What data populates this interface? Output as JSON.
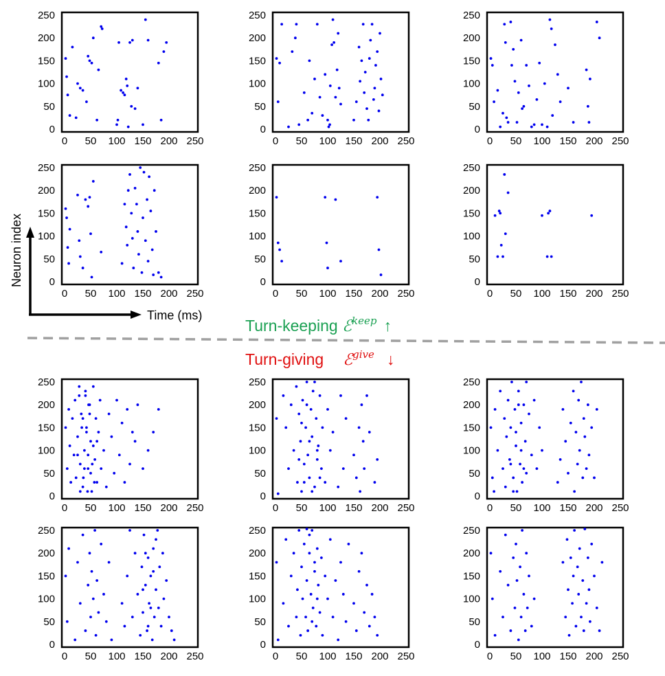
{
  "figure": {
    "colors": {
      "spike": "#0000ee",
      "keep": "#1aa052",
      "give": "#e01010",
      "divider": "#a0a0a0",
      "frame": "#000000"
    },
    "axis_labels": {
      "y": "Neuron index",
      "x": "Time (ms)"
    },
    "banner_keep": {
      "text": "Turn-keeping ",
      "symbol": "ℰ",
      "superscript": "keep",
      "arrow": "↑"
    },
    "banner_give": {
      "text": "Turn-giving",
      "symbol": "ℰ",
      "superscript": "give",
      "arrow": "↓"
    }
  },
  "chart_data": [
    {
      "type": "scatter",
      "group": "turn-keeping",
      "row": 1,
      "col": 1,
      "xlim": [
        0,
        250
      ],
      "ylim": [
        0,
        250
      ],
      "xticks": [
        "0",
        "50",
        "100",
        "150",
        "200",
        "250"
      ],
      "yticks": [
        "0",
        "50",
        "100",
        "150",
        "200",
        "250"
      ],
      "x": [
        2,
        4,
        6,
        10,
        15,
        22,
        25,
        30,
        35,
        42,
        45,
        48,
        52,
        55,
        62,
        65,
        70,
        72,
        100,
        102,
        104,
        108,
        112,
        115,
        118,
        120,
        122,
        125,
        128,
        130,
        135,
        140,
        150,
        155,
        160,
        180,
        185,
        190,
        195
      ],
      "y": [
        155,
        115,
        75,
        30,
        180,
        25,
        100,
        90,
        85,
        60,
        160,
        150,
        145,
        200,
        20,
        130,
        225,
        220,
        10,
        20,
        190,
        85,
        80,
        75,
        110,
        95,
        5,
        190,
        50,
        195,
        45,
        90,
        10,
        240,
        195,
        145,
        20,
        170,
        190
      ]
    },
    {
      "type": "scatter",
      "group": "turn-keeping",
      "row": 1,
      "col": 2,
      "xlim": [
        0,
        250
      ],
      "ylim": [
        0,
        250
      ],
      "xticks": [
        "0",
        "50",
        "100",
        "150",
        "200",
        "250"
      ],
      "yticks": [
        "0",
        "50",
        "100",
        "150",
        "200",
        "250"
      ],
      "x": [
        2,
        5,
        8,
        12,
        25,
        32,
        38,
        40,
        45,
        55,
        62,
        65,
        70,
        75,
        80,
        85,
        90,
        95,
        100,
        102,
        104,
        105,
        108,
        110,
        112,
        115,
        118,
        120,
        122,
        125,
        150,
        155,
        160,
        162,
        165,
        168,
        170,
        172,
        175,
        178,
        180,
        182,
        185,
        188,
        190,
        192,
        195,
        198,
        200,
        202,
        205
      ],
      "y": [
        155,
        60,
        145,
        230,
        5,
        170,
        200,
        230,
        10,
        80,
        20,
        150,
        35,
        110,
        230,
        70,
        30,
        120,
        20,
        5,
        10,
        95,
        185,
        240,
        190,
        70,
        130,
        210,
        90,
        55,
        20,
        60,
        180,
        105,
        150,
        230,
        80,
        125,
        45,
        20,
        155,
        195,
        230,
        65,
        90,
        140,
        170,
        40,
        210,
        110,
        75
      ]
    },
    {
      "type": "scatter",
      "group": "turn-keeping",
      "row": 1,
      "col": 3,
      "xlim": [
        0,
        250
      ],
      "ylim": [
        0,
        250
      ],
      "xticks": [
        "0",
        "50",
        "100",
        "150",
        "200",
        "250"
      ],
      "yticks": [
        "0",
        "50",
        "100",
        "150",
        "200",
        "250"
      ],
      "x": [
        2,
        5,
        8,
        15,
        20,
        25,
        28,
        30,
        32,
        35,
        40,
        42,
        45,
        48,
        52,
        55,
        60,
        62,
        65,
        70,
        75,
        80,
        85,
        90,
        95,
        100,
        105,
        110,
        115,
        118,
        120,
        125,
        130,
        135,
        150,
        160,
        185,
        188,
        190,
        192,
        205,
        210
      ],
      "y": [
        155,
        140,
        60,
        85,
        5,
        35,
        230,
        190,
        25,
        15,
        235,
        140,
        175,
        105,
        15,
        80,
        195,
        45,
        50,
        140,
        95,
        5,
        10,
        65,
        145,
        10,
        100,
        5,
        240,
        220,
        30,
        185,
        120,
        60,
        90,
        15,
        130,
        50,
        15,
        110,
        235,
        200
      ]
    },
    {
      "type": "scatter",
      "group": "turn-keeping",
      "row": 2,
      "col": 1,
      "xlim": [
        0,
        250
      ],
      "ylim": [
        0,
        250
      ],
      "xticks": [
        "0",
        "50",
        "100",
        "150",
        "200",
        "250"
      ],
      "yticks": [
        "0",
        "50",
        "100",
        "150",
        "200",
        "250"
      ],
      "x": [
        2,
        4,
        6,
        8,
        10,
        25,
        28,
        30,
        35,
        40,
        45,
        48,
        50,
        52,
        55,
        70,
        110,
        115,
        118,
        120,
        122,
        125,
        128,
        130,
        132,
        135,
        138,
        140,
        142,
        145,
        148,
        150,
        152,
        155,
        158,
        160,
        162,
        165,
        168,
        170,
        172,
        175,
        180,
        185
      ],
      "y": [
        160,
        140,
        75,
        40,
        115,
        190,
        90,
        55,
        30,
        180,
        165,
        185,
        105,
        10,
        220,
        65,
        40,
        170,
        120,
        80,
        200,
        235,
        150,
        95,
        30,
        205,
        170,
        110,
        60,
        250,
        20,
        140,
        240,
        90,
        180,
        45,
        230,
        155,
        70,
        15,
        200,
        110,
        20,
        10
      ]
    },
    {
      "type": "scatter",
      "group": "turn-keeping",
      "row": 2,
      "col": 2,
      "xlim": [
        0,
        250
      ],
      "ylim": [
        0,
        250
      ],
      "xticks": [
        "0",
        "50",
        "100",
        "150",
        "200",
        "250"
      ],
      "yticks": [
        "0",
        "50",
        "100",
        "150",
        "200",
        "250"
      ],
      "x": [
        2,
        5,
        8,
        12,
        95,
        98,
        100,
        115,
        125,
        195,
        198,
        202
      ],
      "y": [
        185,
        85,
        70,
        45,
        185,
        85,
        30,
        180,
        45,
        185,
        70,
        15
      ]
    },
    {
      "type": "scatter",
      "group": "turn-keeping",
      "row": 2,
      "col": 3,
      "xlim": [
        0,
        250
      ],
      "ylim": [
        0,
        250
      ],
      "xticks": [
        "0",
        "50",
        "100",
        "150",
        "200",
        "250"
      ],
      "yticks": [
        "0",
        "50",
        "100",
        "150",
        "200",
        "250"
      ],
      "x": [
        10,
        15,
        18,
        20,
        22,
        25,
        28,
        30,
        35,
        100,
        110,
        112,
        115,
        118,
        195
      ],
      "y": [
        145,
        55,
        155,
        150,
        80,
        55,
        235,
        105,
        195,
        145,
        55,
        150,
        155,
        55,
        145
      ]
    },
    {
      "type": "scatter",
      "group": "turn-giving",
      "row": 3,
      "col": 1,
      "xlim": [
        0,
        250
      ],
      "ylim": [
        0,
        250
      ],
      "xticks": [
        "0",
        "50",
        "100",
        "150",
        "200",
        "250"
      ],
      "yticks": [
        "0",
        "50",
        "100",
        "150",
        "200",
        "250"
      ],
      "x": [
        2,
        5,
        8,
        10,
        12,
        15,
        18,
        20,
        22,
        25,
        28,
        30,
        32,
        35,
        38,
        40,
        42,
        45,
        48,
        50,
        52,
        55,
        58,
        60,
        62,
        65,
        68,
        70,
        75,
        80,
        85,
        90,
        95,
        100,
        105,
        110,
        115,
        120,
        125,
        130,
        135,
        140,
        150,
        160,
        170,
        180,
        30,
        35,
        40,
        45,
        50,
        55,
        38,
        42,
        46,
        25,
        28,
        33,
        36,
        44,
        48,
        53,
        57,
        62
      ],
      "y": [
        150,
        60,
        190,
        110,
        30,
        170,
        90,
        210,
        40,
        130,
        240,
        70,
        180,
        20,
        100,
        220,
        150,
        60,
        200,
        120,
        10,
        240,
        80,
        170,
        30,
        140,
        210,
        60,
        100,
        20,
        180,
        130,
        50,
        210,
        90,
        160,
        30,
        190,
        70,
        140,
        120,
        200,
        60,
        100,
        140,
        190,
        10,
        170,
        230,
        90,
        50,
        110,
        60,
        140,
        200,
        90,
        220,
        150,
        40,
        10,
        180,
        70,
        30,
        120
      ]
    },
    {
      "type": "scatter",
      "group": "turn-giving",
      "row": 3,
      "col": 2,
      "xlim": [
        0,
        250
      ],
      "ylim": [
        0,
        250
      ],
      "xticks": [
        "0",
        "50",
        "100",
        "150",
        "200",
        "250"
      ],
      "yticks": [
        "0",
        "50",
        "100",
        "150",
        "200",
        "250"
      ],
      "x": [
        2,
        5,
        15,
        20,
        25,
        30,
        35,
        40,
        42,
        45,
        48,
        50,
        52,
        55,
        58,
        60,
        62,
        65,
        68,
        70,
        72,
        75,
        78,
        80,
        82,
        85,
        88,
        90,
        95,
        100,
        105,
        110,
        120,
        125,
        130,
        135,
        150,
        155,
        160,
        162,
        165,
        168,
        170,
        175,
        180,
        190,
        195,
        45,
        50,
        55,
        60,
        65,
        70,
        75,
        80,
        85
      ],
      "y": [
        170,
        5,
        220,
        150,
        60,
        200,
        100,
        240,
        30,
        180,
        120,
        10,
        210,
        70,
        150,
        250,
        90,
        40,
        190,
        130,
        230,
        20,
        170,
        80,
        110,
        220,
        60,
        150,
        30,
        190,
        100,
        140,
        20,
        220,
        60,
        170,
        90,
        40,
        150,
        10,
        200,
        120,
        60,
        220,
        140,
        30,
        80,
        80,
        160,
        30,
        200,
        120,
        10,
        250,
        100,
        40
      ]
    },
    {
      "type": "scatter",
      "group": "turn-giving",
      "row": 3,
      "col": 3,
      "xlim": [
        0,
        250
      ],
      "ylim": [
        0,
        250
      ],
      "xticks": [
        "0",
        "50",
        "100",
        "150",
        "200",
        "250"
      ],
      "yticks": [
        "0",
        "50",
        "100",
        "150",
        "200",
        "250"
      ],
      "x": [
        2,
        5,
        8,
        10,
        15,
        20,
        25,
        28,
        30,
        32,
        35,
        38,
        40,
        42,
        45,
        48,
        50,
        52,
        55,
        58,
        60,
        62,
        65,
        68,
        70,
        75,
        80,
        85,
        90,
        95,
        100,
        130,
        135,
        140,
        145,
        150,
        155,
        160,
        162,
        165,
        168,
        170,
        172,
        175,
        178,
        180,
        182,
        185,
        188,
        190,
        195,
        200,
        205,
        40,
        45,
        50,
        55,
        60,
        65,
        70
      ],
      "y": [
        150,
        40,
        10,
        190,
        100,
        230,
        60,
        170,
        20,
        130,
        210,
        80,
        150,
        250,
        40,
        190,
        110,
        10,
        230,
        70,
        160,
        30,
        200,
        120,
        50,
        180,
        90,
        210,
        60,
        150,
        100,
        30,
        80,
        190,
        120,
        50,
        160,
        230,
        10,
        140,
        70,
        210,
        100,
        250,
        40,
        170,
        130,
        60,
        200,
        90,
        150,
        40,
        190,
        70,
        10,
        140,
        200,
        100,
        60,
        250
      ]
    },
    {
      "type": "scatter",
      "group": "turn-giving",
      "row": 4,
      "col": 1,
      "xlim": [
        0,
        250
      ],
      "ylim": [
        0,
        250
      ],
      "xticks": [
        "0",
        "50",
        "100",
        "150",
        "200",
        "250"
      ],
      "yticks": [
        "0",
        "50",
        "100",
        "150",
        "200",
        "250"
      ],
      "x": [
        2,
        5,
        8,
        20,
        25,
        30,
        35,
        40,
        45,
        48,
        50,
        52,
        55,
        58,
        60,
        62,
        65,
        70,
        75,
        80,
        85,
        90,
        110,
        115,
        120,
        125,
        130,
        135,
        140,
        145,
        148,
        150,
        152,
        155,
        158,
        160,
        162,
        165,
        168,
        170,
        172,
        175,
        178,
        180,
        182,
        185,
        188,
        190,
        195,
        200,
        205,
        210,
        150,
        155,
        160,
        165,
        170,
        175
      ],
      "y": [
        150,
        50,
        210,
        10,
        180,
        90,
        240,
        30,
        130,
        200,
        60,
        160,
        100,
        250,
        20,
        140,
        70,
        220,
        110,
        50,
        180,
        10,
        90,
        40,
        150,
        250,
        60,
        200,
        110,
        20,
        170,
        70,
        240,
        130,
        30,
        190,
        90,
        150,
        10,
        210,
        60,
        120,
        250,
        80,
        170,
        40,
        200,
        100,
        140,
        60,
        30,
        10,
        120,
        200,
        40,
        80,
        160,
        230
      ]
    },
    {
      "type": "scatter",
      "group": "turn-giving",
      "row": 4,
      "col": 2,
      "xlim": [
        0,
        250
      ],
      "ylim": [
        0,
        250
      ],
      "xticks": [
        "0",
        "50",
        "100",
        "150",
        "200",
        "250"
      ],
      "yticks": [
        "0",
        "50",
        "100",
        "150",
        "200",
        "250"
      ],
      "x": [
        2,
        5,
        15,
        20,
        25,
        30,
        35,
        40,
        42,
        45,
        48,
        50,
        52,
        55,
        58,
        60,
        62,
        65,
        68,
        70,
        72,
        75,
        78,
        80,
        82,
        85,
        88,
        90,
        95,
        100,
        105,
        110,
        115,
        120,
        125,
        130,
        135,
        140,
        150,
        155,
        160,
        165,
        170,
        175,
        180,
        185,
        190,
        195,
        60,
        65,
        70,
        75,
        80
      ],
      "y": [
        180,
        10,
        90,
        230,
        40,
        150,
        200,
        60,
        120,
        250,
        20,
        170,
        100,
        220,
        60,
        140,
        30,
        200,
        110,
        250,
        80,
        160,
        40,
        210,
        130,
        70,
        190,
        20,
        150,
        100,
        230,
        60,
        140,
        10,
        180,
        110,
        50,
        220,
        90,
        30,
        160,
        200,
        70,
        130,
        40,
        110,
        60,
        20,
        260,
        240,
        50,
        180,
        100
      ]
    },
    {
      "type": "scatter",
      "group": "turn-giving",
      "row": 4,
      "col": 3,
      "xlim": [
        0,
        250
      ],
      "ylim": [
        0,
        250
      ],
      "xticks": [
        "0",
        "50",
        "100",
        "150",
        "200",
        "250"
      ],
      "yticks": [
        "0",
        "50",
        "100",
        "150",
        "200",
        "250"
      ],
      "x": [
        2,
        5,
        10,
        20,
        25,
        30,
        35,
        40,
        45,
        48,
        50,
        52,
        55,
        58,
        60,
        62,
        65,
        68,
        70,
        72,
        75,
        80,
        85,
        140,
        145,
        148,
        150,
        152,
        155,
        158,
        160,
        162,
        165,
        168,
        170,
        172,
        175,
        178,
        180,
        182,
        185,
        188,
        190,
        192,
        195,
        200,
        205,
        210,
        215
      ],
      "y": [
        200,
        100,
        20,
        160,
        60,
        240,
        130,
        30,
        190,
        80,
        220,
        140,
        10,
        170,
        60,
        250,
        110,
        30,
        200,
        80,
        150,
        40,
        100,
        180,
        60,
        230,
        120,
        20,
        190,
        90,
        150,
        250,
        40,
        170,
        110,
        210,
        60,
        140,
        30,
        260,
        90,
        190,
        120,
        50,
        220,
        150,
        80,
        30,
        180
      ]
    }
  ]
}
